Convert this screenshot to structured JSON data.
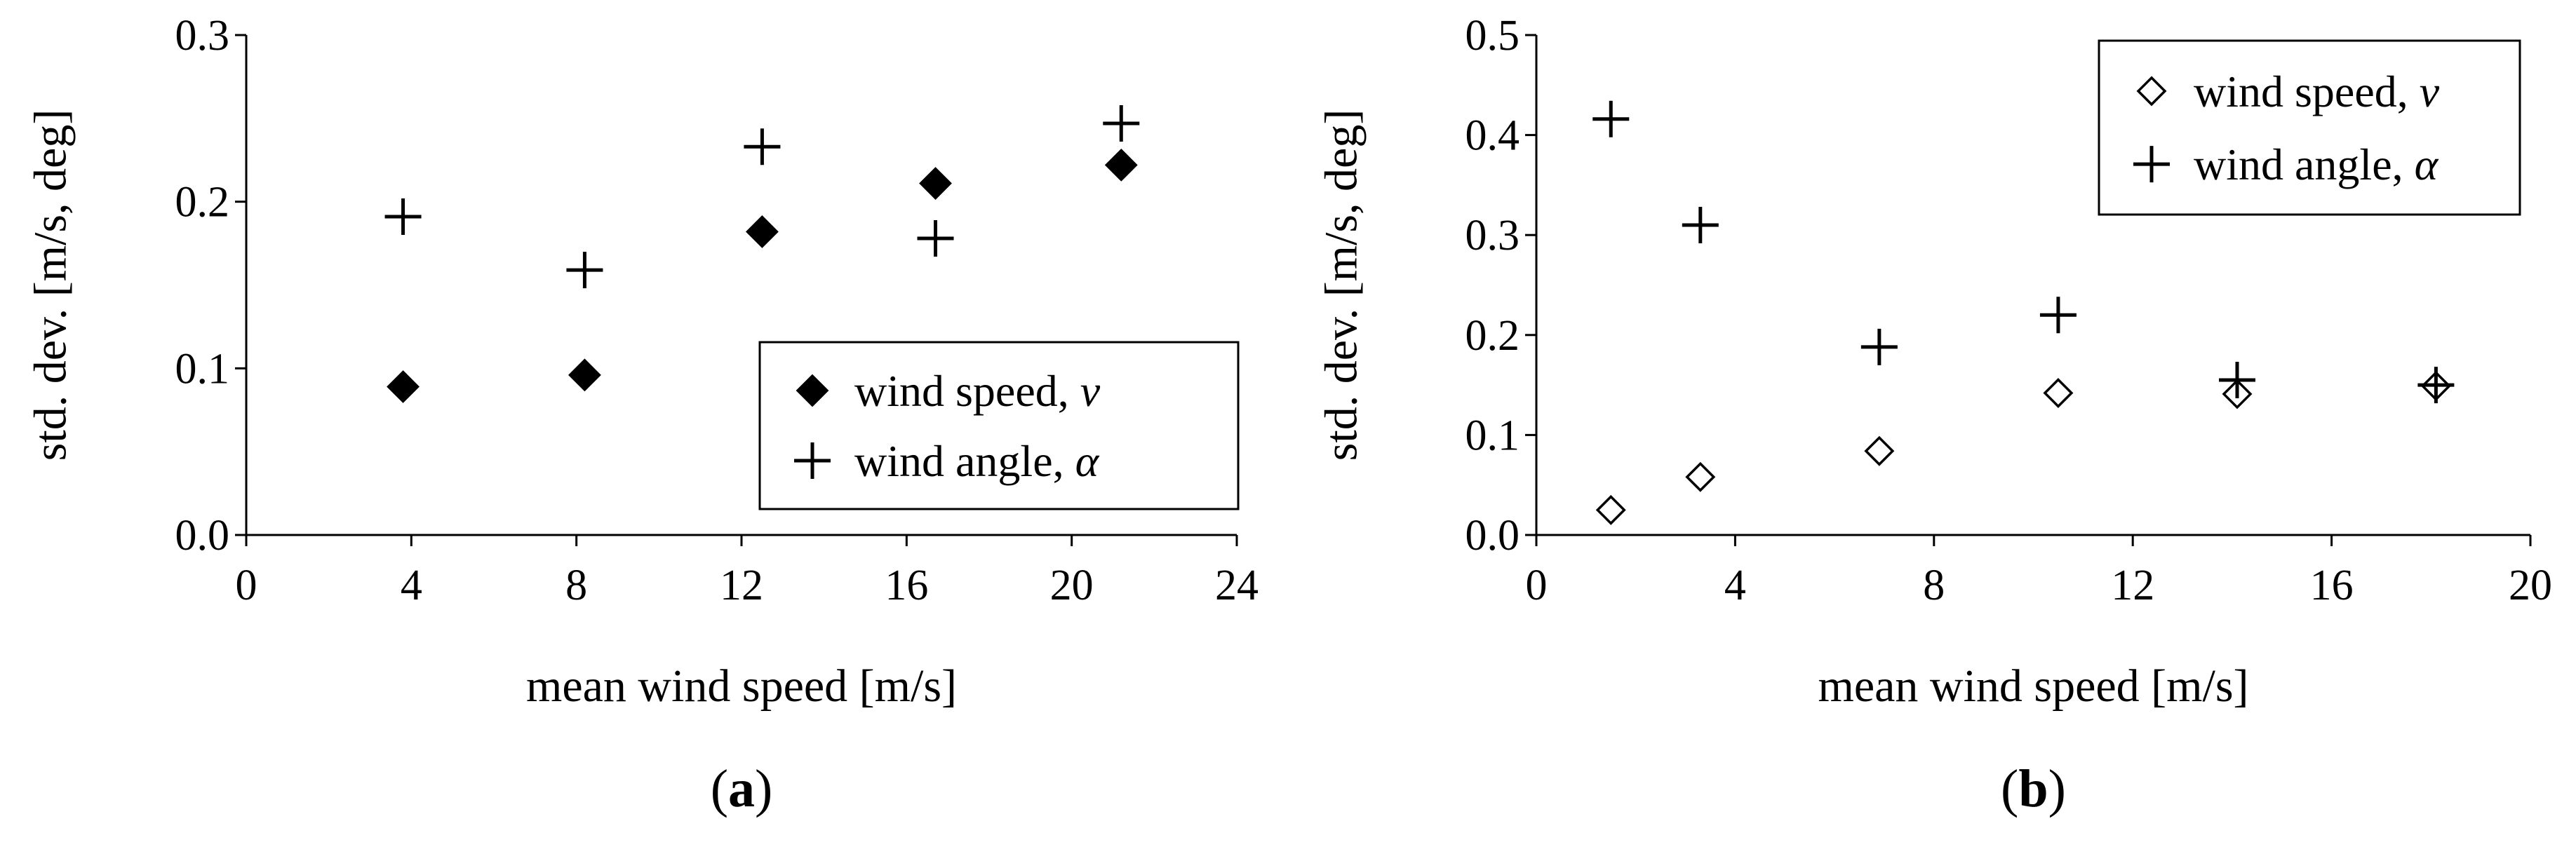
{
  "chart_data": [
    {
      "type": "scatter",
      "panel_label": "a",
      "xlabel": "mean wind speed [m/s]",
      "ylabel": "std. dev. [m/s, deg]",
      "xlim": [
        0,
        24
      ],
      "ylim": [
        0,
        0.3
      ],
      "xticks": [
        "0",
        "4",
        "8",
        "12",
        "16",
        "20",
        "24"
      ],
      "yticks": [
        "0.0",
        "0.1",
        "0.2",
        "0.3"
      ],
      "legend_position": "bottom-right",
      "series": [
        {
          "name": "wind speed, ",
          "symbol": "v",
          "marker": "diamond-filled",
          "x": [
            3.8,
            8.2,
            12.5,
            16.7,
            21.2
          ],
          "y": [
            0.089,
            0.096,
            0.182,
            0.211,
            0.222
          ]
        },
        {
          "name": "wind angle, ",
          "symbol": "α",
          "marker": "plus",
          "x": [
            3.8,
            8.2,
            12.5,
            16.7,
            21.2
          ],
          "y": [
            0.191,
            0.159,
            0.233,
            0.178,
            0.247
          ]
        }
      ]
    },
    {
      "type": "scatter",
      "panel_label": "b",
      "xlabel": "mean wind speed [m/s]",
      "ylabel": "std. dev. [m/s, deg]",
      "xlim": [
        0,
        20
      ],
      "ylim": [
        0,
        0.5
      ],
      "xticks": [
        "0",
        "4",
        "8",
        "12",
        "16",
        "20"
      ],
      "yticks": [
        "0.0",
        "0.1",
        "0.2",
        "0.3",
        "0.4",
        "0.5"
      ],
      "legend_position": "top-right",
      "series": [
        {
          "name": "wind speed, ",
          "symbol": "v",
          "marker": "diamond-open",
          "x": [
            1.5,
            3.3,
            6.9,
            10.5,
            14.1,
            18.1
          ],
          "y": [
            0.025,
            0.058,
            0.084,
            0.142,
            0.141,
            0.149
          ]
        },
        {
          "name": "wind angle, ",
          "symbol": "α",
          "marker": "plus",
          "x": [
            1.5,
            3.3,
            6.9,
            10.5,
            14.1,
            18.1
          ],
          "y": [
            0.416,
            0.31,
            0.188,
            0.22,
            0.155,
            0.15
          ]
        }
      ]
    }
  ]
}
